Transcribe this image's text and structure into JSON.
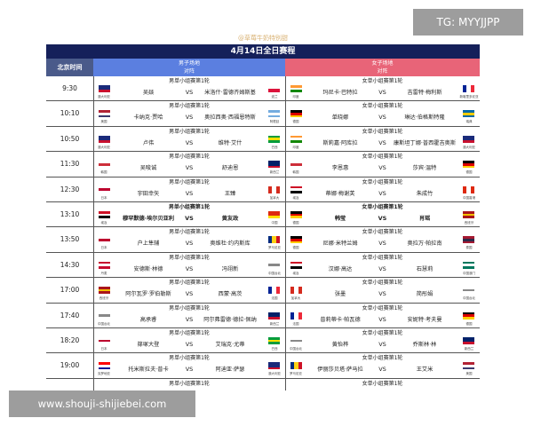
{
  "credit": "@草莓牛奶特别甜",
  "title": "4月14日全日赛程",
  "header": {
    "time": "北京时间",
    "men": "男子场地",
    "women": "女子场地",
    "sub": "对阵"
  },
  "watermarks": {
    "top_right": "TG: MYYJJPP",
    "bottom_left": "www.shouji-shijiebei.com"
  },
  "vs_label": "VS",
  "colors": {
    "title_bg": "#15205a",
    "men_header": "#5b7fe0",
    "women_header": "#e86478"
  },
  "flags": {
    "澳大利亚": [
      "#1a2a7a",
      "#1a2a7a",
      "#c8102e"
    ],
    "波兰": [
      "#ffffff",
      "#dc143c"
    ],
    "印度": [
      "#ff9933",
      "#ffffff",
      "#138808"
    ],
    "新喀里多尼亚": [
      "#002395",
      "#ffffff",
      "#ed2939"
    ],
    "美国": [
      "#b22234",
      "#ffffff",
      "#3c3b6e"
    ],
    "阿根廷": [
      "#74acdf",
      "#ffffff",
      "#74acdf"
    ],
    "德国": [
      "#000000",
      "#dd0000",
      "#ffce00"
    ],
    "瑞典": [
      "#006aa7",
      "#fecc00",
      "#006aa7"
    ],
    "巴西": [
      "#009c3b",
      "#ffdf00",
      "#009c3b"
    ],
    "韩国": [
      "#ffffff",
      "#cd2e3a",
      "#ffffff"
    ],
    "新西兰": [
      "#012169",
      "#012169",
      "#c8102e"
    ],
    "日本": [
      "#ffffff",
      "#bc002d",
      "#ffffff"
    ],
    "加拿大": [
      "#d52b1e",
      "#ffffff",
      "#d52b1e"
    ],
    "埃及": [
      "#ce1126",
      "#ffffff",
      "#000000"
    ],
    "中国香港": [
      "#de2910",
      "#ffffff",
      "#de2910"
    ],
    "中国": [
      "#de2910",
      "#de2910",
      "#ffde00"
    ],
    "西班牙": [
      "#aa151b",
      "#f1bf00",
      "#aa151b"
    ],
    "罗马尼亚": [
      "#002b7f",
      "#fcd116",
      "#ce1126"
    ],
    "泰国": [
      "#a51931",
      "#2d2a4a",
      "#a51931"
    ],
    "丹麦": [
      "#c60c30",
      "#ffffff",
      "#c60c30"
    ],
    "中国台北": [
      "#ffffff",
      "#888888",
      "#ffffff"
    ],
    "中国澳门": [
      "#00785e",
      "#ffffff",
      "#00785e"
    ],
    "法国": [
      "#002395",
      "#ffffff",
      "#ed2939"
    ],
    "克罗地亚": [
      "#ff0000",
      "#ffffff",
      "#171796"
    ]
  },
  "rows": [
    {
      "time": "9:30",
      "bold": false,
      "men": {
        "round": "男单小组赛第1轮",
        "left": {
          "name": "吴燚",
          "country": "澳大利亚"
        },
        "right": {
          "name": "米洛什·雷德齐姆斯基",
          "country": "波兰"
        }
      },
      "women": {
        "round": "女单小组赛第1轮",
        "left": {
          "name": "玛尼卡·巴特拉",
          "country": "印度"
        },
        "right": {
          "name": "吉雷特·梅利斯",
          "country": "新喀里多尼亚"
        }
      }
    },
    {
      "time": "10:10",
      "bold": false,
      "men": {
        "round": "男单小组赛第1轮",
        "left": {
          "name": "卡纳克·贾哈",
          "country": "美国"
        },
        "right": {
          "name": "奥拉西奥·西福恩特斯",
          "country": "阿根廷"
        }
      },
      "women": {
        "round": "女单小组赛第1轮",
        "left": {
          "name": "单晓娜",
          "country": "德国"
        },
        "right": {
          "name": "琳达·伯格斯特隆",
          "country": "瑞典"
        }
      }
    },
    {
      "time": "10:50",
      "bold": false,
      "men": {
        "round": "男单小组赛第1轮",
        "left": {
          "name": "卢伟",
          "country": "澳大利亚"
        },
        "right": {
          "name": "维特·艾什",
          "country": "巴西"
        }
      },
      "women": {
        "round": "女单小组赛第1轮",
        "left": {
          "name": "斯莉嘉·阿库拉",
          "country": "印度"
        },
        "right": {
          "name": "康斯坦丁娜·普西霍吉奥斯",
          "country": "澳大利亚"
        }
      }
    },
    {
      "time": "11:30",
      "bold": false,
      "men": {
        "round": "男单小组赛第1轮",
        "left": {
          "name": "吴晙诚",
          "country": "韩国"
        },
        "right": {
          "name": "舒迪恩",
          "country": "新西兰"
        }
      },
      "women": {
        "round": "女单小组赛第1轮",
        "left": {
          "name": "李恩惠",
          "country": "韩国"
        },
        "right": {
          "name": "莎宾·温特",
          "country": "德国"
        }
      }
    },
    {
      "time": "12:30",
      "bold": false,
      "men": {
        "round": "男单小组赛第1轮",
        "left": {
          "name": "宇田幸矢",
          "country": "日本"
        },
        "right": {
          "name": "王臻",
          "country": "加拿大"
        }
      },
      "women": {
        "round": "女单小组赛第1轮",
        "left": {
          "name": "蒂娜·梅谢芙",
          "country": "埃及"
        },
        "right": {
          "name": "朱成竹",
          "country": "中国香港"
        }
      }
    },
    {
      "time": "13:10",
      "bold": true,
      "men": {
        "round": "男单小组赛第1轮",
        "left": {
          "name": "穆罕默德·埃尔贝亚利",
          "country": "埃及"
        },
        "right": {
          "name": "黄友政",
          "country": "中国"
        }
      },
      "women": {
        "round": "女单小组赛第1轮",
        "left": {
          "name": "韩莹",
          "country": "德国"
        },
        "right": {
          "name": "肖瑶",
          "country": "西班牙"
        }
      }
    },
    {
      "time": "13:50",
      "bold": false,
      "men": {
        "round": "男单小组赛第1轮",
        "left": {
          "name": "户上隼辅",
          "country": "日本"
        },
        "right": {
          "name": "奥维杜·约内斯库",
          "country": "罗马尼亚"
        }
      },
      "women": {
        "round": "女单小组赛第1轮",
        "left": {
          "name": "尼娜·米特兰姆",
          "country": "德国"
        },
        "right": {
          "name": "奥拉万·帕拉南",
          "country": "泰国"
        }
      }
    },
    {
      "time": "14:30",
      "bold": false,
      "men": {
        "round": "男单小组赛第1轮",
        "left": {
          "name": "安德斯·林德",
          "country": "丹麦"
        },
        "right": {
          "name": "冯翊新",
          "country": "中国台北"
        }
      },
      "women": {
        "round": "女单小组赛第1轮",
        "left": {
          "name": "汉娜·高达",
          "country": "埃及"
        },
        "right": {
          "name": "石慧莉",
          "country": "中国澳门"
        }
      }
    },
    {
      "time": "17:00",
      "bold": false,
      "men": {
        "round": "男单小组赛第1轮",
        "left": {
          "name": "阿尔瓦罗·罗伯勒斯",
          "country": "西班牙"
        },
        "right": {
          "name": "西蒙·高茨",
          "country": "法国"
        }
      },
      "women": {
        "round": "女单小组赛第1轮",
        "left": {
          "name": "张墨",
          "country": "加拿大"
        },
        "right": {
          "name": "简彤娟",
          "country": "中国台北"
        }
      }
    },
    {
      "time": "17:40",
      "bold": false,
      "men": {
        "round": "男单小组赛第1轮",
        "left": {
          "name": "高承睿",
          "country": "中国台北"
        },
        "right": {
          "name": "阿尔弗雷德·德拉·佩纳",
          "country": "新西兰"
        }
      },
      "women": {
        "round": "女单小组赛第1轮",
        "left": {
          "name": "普莉蒂卡·帕瓦德",
          "country": "法国"
        },
        "right": {
          "name": "安妮特·考夫曼",
          "country": "德国"
        }
      }
    },
    {
      "time": "18:20",
      "bold": false,
      "men": {
        "round": "男单小组赛第1轮",
        "left": {
          "name": "篠塚大登",
          "country": "日本"
        },
        "right": {
          "name": "艾瑞克·尤蒂",
          "country": "巴西"
        }
      },
      "women": {
        "round": "女单小组赛第1轮",
        "left": {
          "name": "黄怡桦",
          "country": "中国台北"
        },
        "right": {
          "name": "乔斯林·林",
          "country": "新西兰"
        }
      }
    },
    {
      "time": "19:00",
      "bold": false,
      "men": {
        "round": "男单小组赛第1轮",
        "left": {
          "name": "托米斯拉夫·普卡",
          "country": "克罗地亚"
        },
        "right": {
          "name": "阿迪亚·萨瑟",
          "country": "澳大利亚"
        }
      },
      "women": {
        "round": "女单小组赛第1轮",
        "left": {
          "name": "伊丽莎贝塔·萨马拉",
          "country": "罗马尼亚"
        },
        "right": {
          "name": "王艾米",
          "country": "美国"
        }
      }
    },
    {
      "time": "",
      "bold": false,
      "men": {
        "round": "男单小组赛第1轮"
      },
      "women": {
        "round": "女单小组赛第1轮"
      }
    }
  ]
}
